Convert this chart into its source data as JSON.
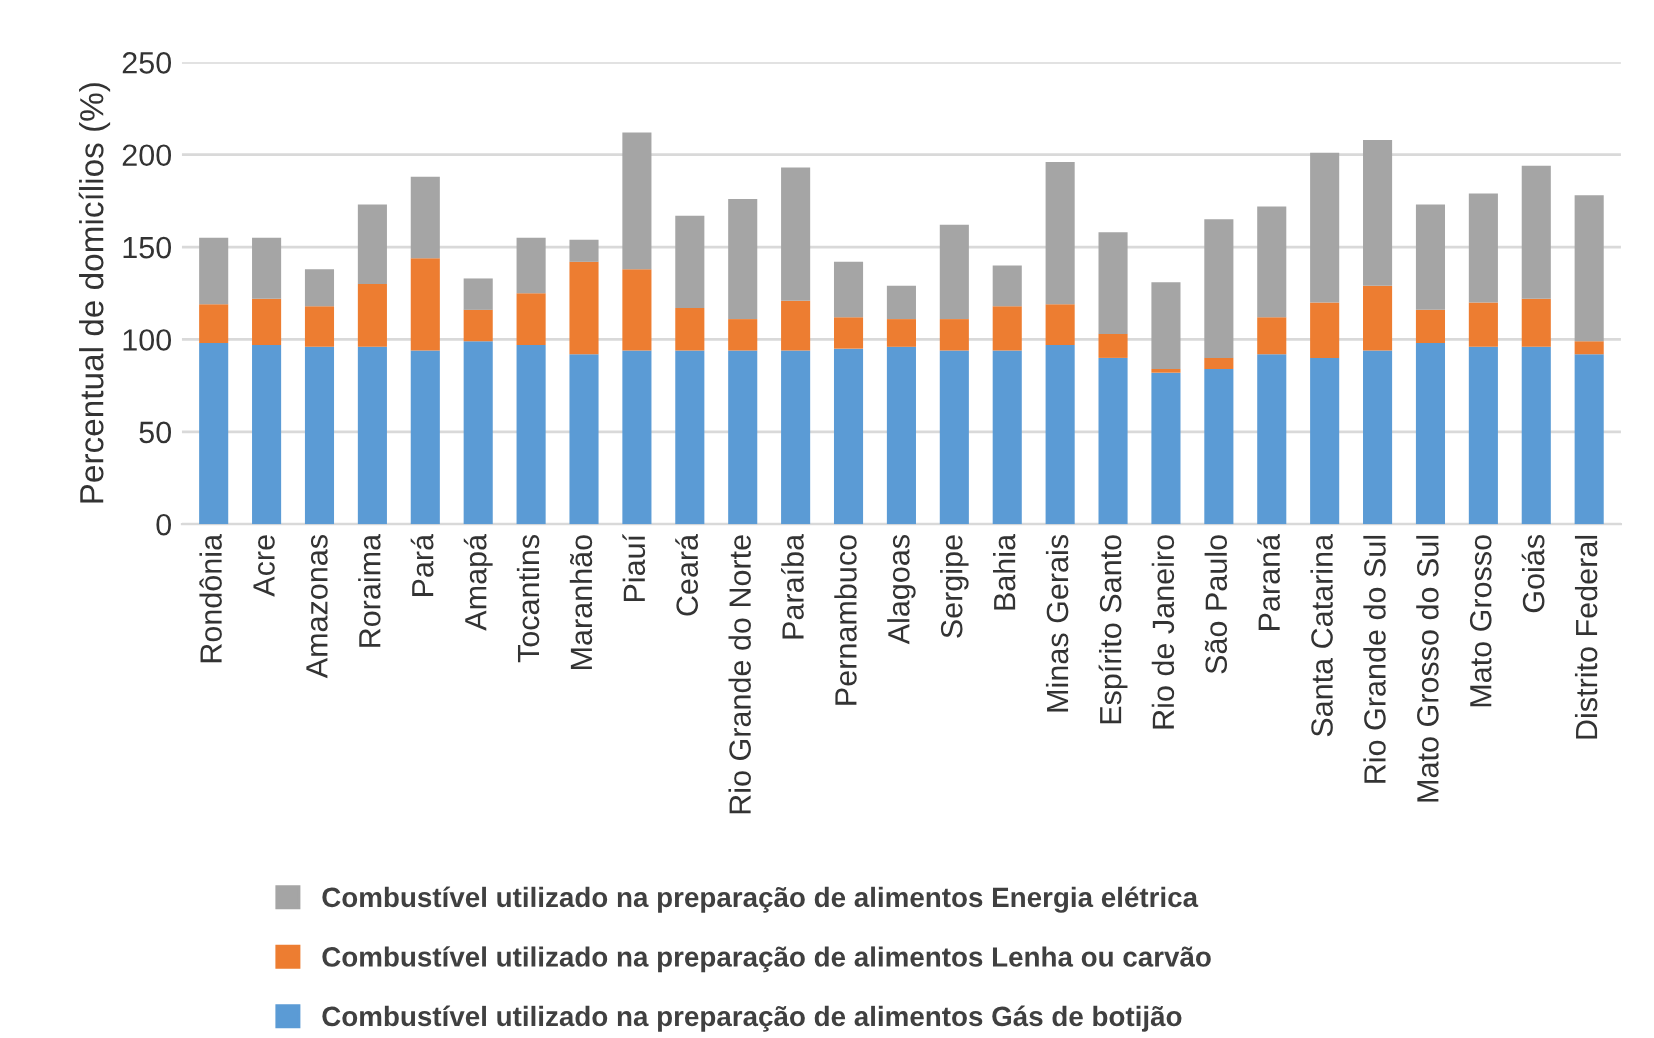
{
  "chart_data": {
    "type": "bar",
    "stacked": true,
    "ylabel": "Percentual de domicílios (%)",
    "categories": [
      "Rondônia",
      "Acre",
      "Amazonas",
      "Roraima",
      "Pará",
      "Amapá",
      "Tocantins",
      "Maranhão",
      "Piauí",
      "Ceará",
      "Rio Grande do Norte",
      "Paraíba",
      "Pernambuco",
      "Alagoas",
      "Sergipe",
      "Bahia",
      "Minas Gerais",
      "Espírito Santo",
      "Rio de Janeiro",
      "São Paulo",
      "Paraná",
      "Santa Catarina",
      "Rio Grande do Sul",
      "Mato Grosso do Sul",
      "Mato Grosso",
      "Goiás",
      "Distrito Federal"
    ],
    "series": [
      {
        "name": "Combustível utilizado na preparação de alimentos Gás de botijão",
        "color": "#5b9bd5",
        "values": [
          98,
          97,
          96,
          96,
          94,
          99,
          97,
          92,
          94,
          94,
          94,
          94,
          95,
          96,
          94,
          94,
          97,
          90,
          82,
          84,
          92,
          90,
          94,
          98,
          96,
          96,
          92
        ]
      },
      {
        "name": "Combustível utilizado na preparação de alimentos Lenha ou carvão",
        "color": "#ed7d31",
        "values": [
          21,
          25,
          22,
          34,
          50,
          17,
          28,
          50,
          44,
          23,
          17,
          27,
          17,
          15,
          17,
          24,
          22,
          13,
          2,
          6,
          20,
          30,
          35,
          18,
          24,
          26,
          7
        ]
      },
      {
        "name": "Combustível utilizado na preparação de alimentos Energia elétrica",
        "color": "#a5a5a5",
        "values": [
          36,
          33,
          20,
          43,
          44,
          17,
          30,
          12,
          74,
          50,
          65,
          72,
          30,
          18,
          51,
          22,
          77,
          55,
          47,
          75,
          60,
          81,
          79,
          57,
          59,
          72,
          79
        ]
      }
    ],
    "ylim": [
      0,
      250
    ],
    "yticks": [
      0,
      50,
      100,
      150,
      200,
      250
    ],
    "grid": "y",
    "legend": "bottom"
  }
}
